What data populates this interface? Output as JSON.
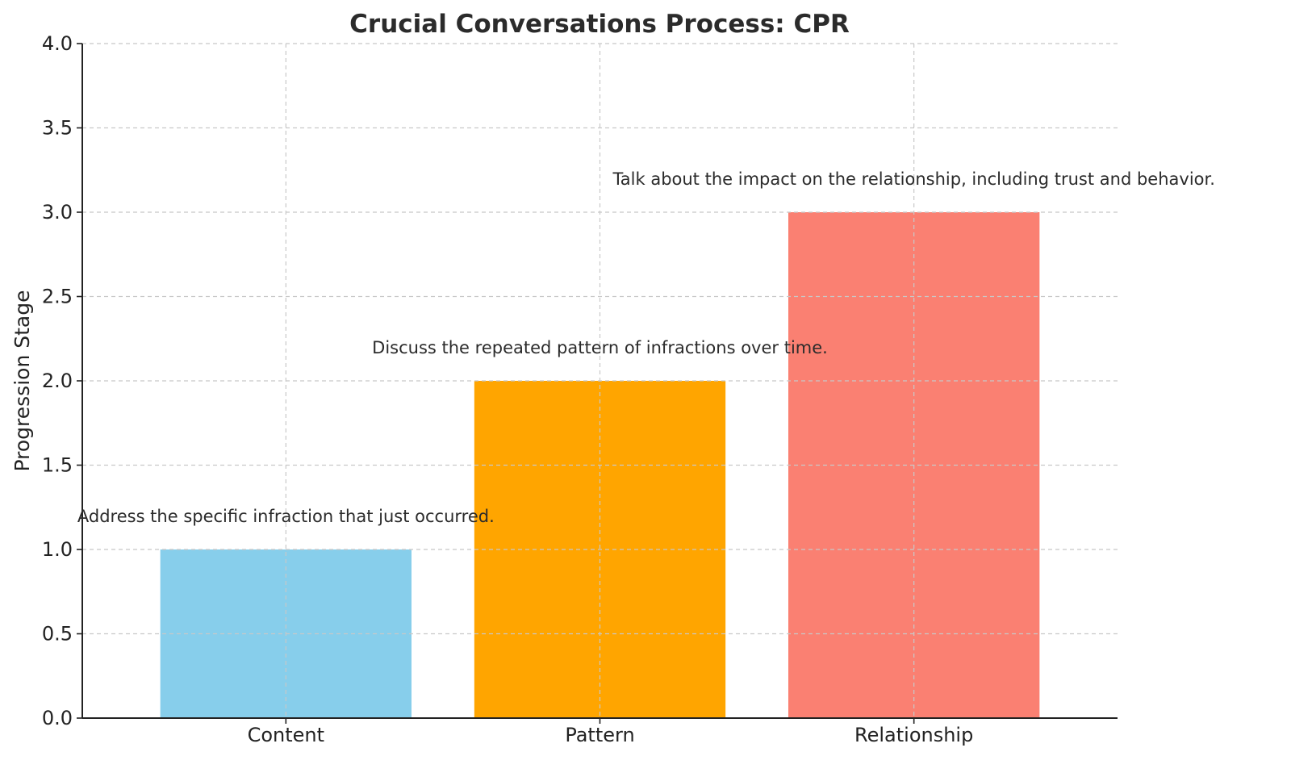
{
  "chart_data": {
    "type": "bar",
    "title": "Crucial Conversations Process: CPR",
    "xlabel": "",
    "ylabel": "Progression Stage",
    "categories": [
      "Content",
      "Pattern",
      "Relationship"
    ],
    "values": [
      1,
      2,
      3
    ],
    "colors": [
      "#87CEEB",
      "#FFA500",
      "#FA8072"
    ],
    "annotations": [
      "Address the specific infraction that just occurred.",
      "Discuss the repeated pattern of infractions over time.",
      "Talk about the impact on the relationship, including trust and behavior."
    ],
    "ylim": [
      0,
      4
    ],
    "yticks": [
      "0.0",
      "0.5",
      "1.0",
      "1.5",
      "2.0",
      "2.5",
      "3.0",
      "3.5",
      "4.0"
    ],
    "grid": true,
    "legend": "none"
  }
}
